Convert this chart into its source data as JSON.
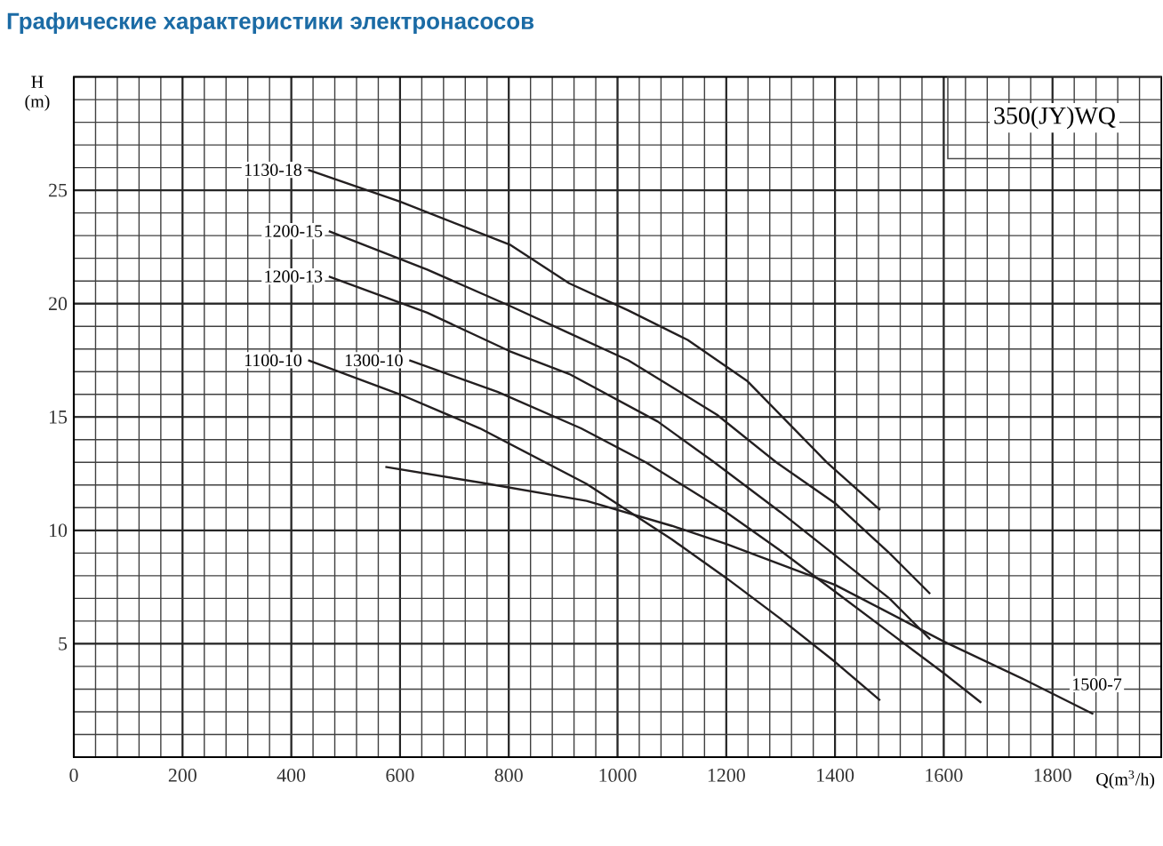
{
  "chart_data": {
    "type": "line",
    "title": "Графические характеристики электронасосов",
    "xlabel": "Q(m$^{3}$/h)",
    "ylabel": "H (m)",
    "xlim": [
      0,
      2000
    ],
    "ylim": [
      0,
      30
    ],
    "xticks": [
      0,
      200,
      400,
      600,
      800,
      1000,
      1200,
      1400,
      1600,
      1800
    ],
    "yticks": [
      5,
      10,
      15,
      20,
      25
    ],
    "grid": true,
    "series": [
      {
        "name": "1130-18",
        "color": "#231f20",
        "x": [
          431,
          600,
          802,
          911,
          1020,
          1129,
          1238,
          1385,
          1483
        ],
        "values": [
          25.9,
          24.5,
          22.6,
          20.9,
          19.7,
          18.4,
          16.6,
          13.0,
          10.9
        ]
      },
      {
        "name": "1200-15",
        "color": "#231f20",
        "x": [
          469,
          650,
          802,
          911,
          1020,
          1183,
          1292,
          1400,
          1500,
          1575
        ],
        "values": [
          23.2,
          21.5,
          19.9,
          18.7,
          17.5,
          15.1,
          13.0,
          11.2,
          9.0,
          7.2
        ]
      },
      {
        "name": "1200-13",
        "color": "#231f20",
        "x": [
          469,
          650,
          802,
          911,
          1074,
          1178,
          1300,
          1400,
          1500,
          1575
        ],
        "values": [
          21.2,
          19.6,
          17.9,
          16.9,
          14.8,
          13.0,
          10.8,
          8.9,
          7.0,
          5.2
        ]
      },
      {
        "name": "1300-10",
        "color": "#231f20",
        "x": [
          617,
          780,
          933,
          1052,
          1200,
          1300,
          1400,
          1500,
          1600,
          1669
        ],
        "values": [
          17.5,
          16.1,
          14.5,
          13.0,
          10.8,
          9.1,
          7.3,
          5.5,
          3.7,
          2.4
        ]
      },
      {
        "name": "1100-10",
        "color": "#231f20",
        "x": [
          431,
          600,
          747,
          943,
          1100,
          1200,
          1300,
          1400,
          1483
        ],
        "values": [
          17.5,
          16.0,
          14.5,
          12.05,
          9.6,
          7.9,
          6.1,
          4.2,
          2.5
        ]
      },
      {
        "name": "1500-7",
        "color": "#231f20",
        "x": [
          573,
          750,
          943,
          1100,
          1200,
          1400,
          1600,
          1750,
          1875
        ],
        "values": [
          12.8,
          12.1,
          11.3,
          10.2,
          9.4,
          7.6,
          5.1,
          3.4,
          1.9
        ]
      }
    ],
    "annotations": [
      "350(JY)WQ"
    ]
  }
}
